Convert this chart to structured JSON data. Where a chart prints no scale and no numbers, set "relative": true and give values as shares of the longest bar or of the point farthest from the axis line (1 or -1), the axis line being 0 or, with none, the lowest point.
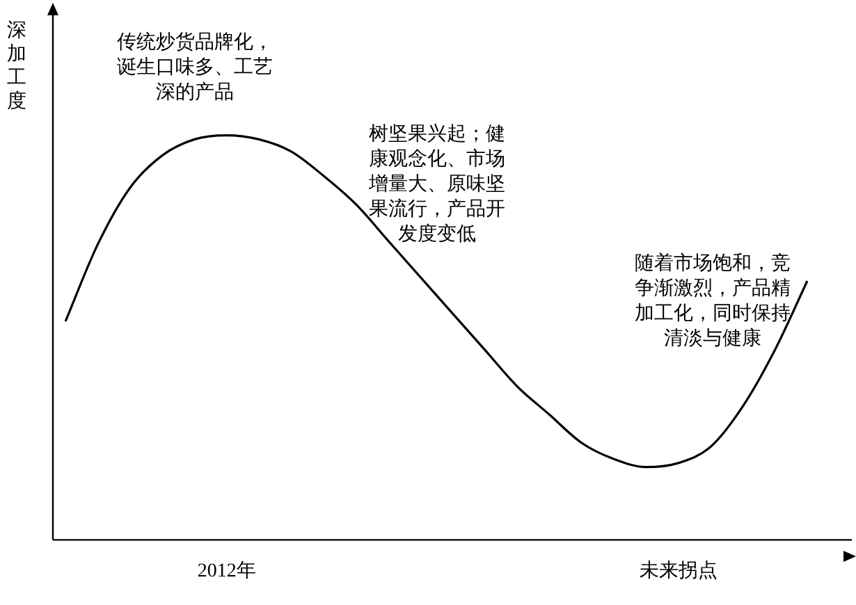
{
  "chart_data": {
    "type": "line",
    "relative": true,
    "ylabel": "深加工度",
    "categories": [
      null,
      null,
      null,
      null,
      null,
      "2012年",
      null,
      null,
      null,
      null,
      null,
      null,
      null,
      null,
      null,
      null,
      null,
      null,
      null,
      "未来拐点",
      null,
      null,
      null,
      null
    ],
    "series": [
      {
        "color": "#000000",
        "values": [
          0.54,
          0.73,
          0.87,
          0.95,
          0.99,
          1,
          0.99,
          0.96,
          0.9,
          0.83,
          0.74,
          0.65,
          0.56,
          0.47,
          0.38,
          0.31,
          0.24,
          0.2,
          0.18,
          0.19,
          0.23,
          0.33,
          0.47,
          0.64
        ]
      }
    ],
    "annotations": [
      "传统炒货品牌化，诞生口味多、工艺深的产品",
      "树坚果兴起；健康观念化、市场增量大、原味坚果流行，产品开发度变低",
      "随着市场饱和，竞争渐激烈，产品精加工化，同时保持清淡与健康"
    ],
    "marker": "none",
    "line_style": "solid",
    "legend": false,
    "grid": false
  }
}
